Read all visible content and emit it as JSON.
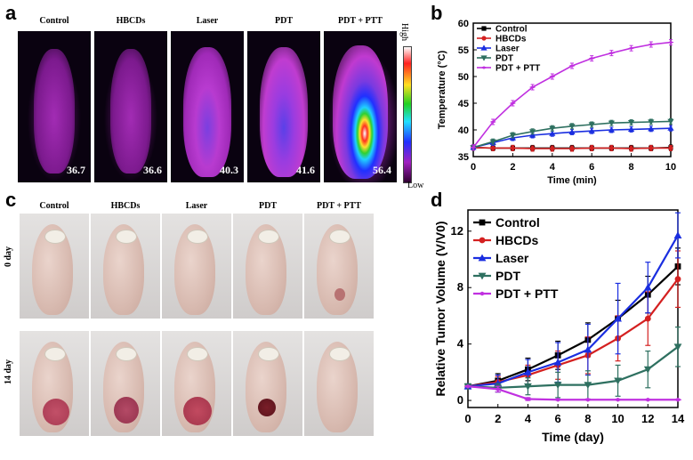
{
  "panels": {
    "a": "a",
    "b": "b",
    "c": "c",
    "d": "d"
  },
  "thermal": {
    "groups": [
      "Control",
      "HBCDs",
      "Laser",
      "PDT",
      "PDT + PTT"
    ],
    "temps": [
      "36.7",
      "36.6",
      "40.3",
      "41.6",
      "56.4"
    ],
    "scale_high": "High",
    "scale_low": "Low"
  },
  "photos": {
    "groups": [
      "Control",
      "HBCDs",
      "Laser",
      "PDT",
      "PDT + PTT"
    ],
    "rows": [
      "0 day",
      "14 day"
    ]
  },
  "chart_data": [
    {
      "type": "line",
      "title": "",
      "xlabel": "Time (min)",
      "ylabel": "Temperature (°C)",
      "xlim": [
        0,
        10
      ],
      "ylim": [
        35,
        60
      ],
      "xticks": [
        0,
        2,
        4,
        6,
        8,
        10
      ],
      "yticks": [
        35,
        40,
        45,
        50,
        55,
        60
      ],
      "legend_position": "top-left",
      "x": [
        0,
        1,
        2,
        3,
        4,
        5,
        6,
        7,
        8,
        9,
        10
      ],
      "series": [
        {
          "name": "Control",
          "color": "#000000",
          "values": [
            36.7,
            36.6,
            36.6,
            36.6,
            36.6,
            36.6,
            36.6,
            36.6,
            36.6,
            36.6,
            36.7
          ]
        },
        {
          "name": "HBCDs",
          "color": "#d42020",
          "values": [
            36.7,
            36.6,
            36.6,
            36.5,
            36.5,
            36.5,
            36.6,
            36.6,
            36.5,
            36.6,
            36.6
          ]
        },
        {
          "name": "Laser",
          "color": "#1a2ee0",
          "values": [
            36.7,
            37.6,
            38.5,
            39.0,
            39.3,
            39.6,
            39.8,
            40.0,
            40.1,
            40.2,
            40.3
          ]
        },
        {
          "name": "PDT",
          "color": "#2e7060",
          "values": [
            36.7,
            37.8,
            39.0,
            39.7,
            40.3,
            40.7,
            41.0,
            41.3,
            41.4,
            41.5,
            41.6
          ]
        },
        {
          "name": "PDT + PTT",
          "color": "#c030e0",
          "values": [
            36.7,
            41.5,
            45.0,
            48.0,
            50.0,
            52.0,
            53.4,
            54.4,
            55.3,
            56.0,
            56.4
          ]
        }
      ]
    },
    {
      "type": "line",
      "title": "",
      "xlabel": "Time (day)",
      "ylabel": "Relative Tumor Volume (V/V0)",
      "xlim": [
        0,
        14
      ],
      "ylim": [
        -0.5,
        13.5
      ],
      "xticks": [
        0,
        2,
        4,
        6,
        8,
        10,
        12,
        14
      ],
      "yticks": [
        0,
        4,
        8,
        12
      ],
      "legend_position": "top-left",
      "x": [
        0,
        2,
        4,
        6,
        8,
        10,
        12,
        14
      ],
      "series": [
        {
          "name": "Control",
          "color": "#000000",
          "values": [
            1.0,
            1.4,
            2.2,
            3.2,
            4.3,
            5.8,
            7.5,
            9.5
          ],
          "err": [
            0,
            0.5,
            0.8,
            1.0,
            1.2,
            1.3,
            1.3,
            1.3
          ]
        },
        {
          "name": "HBCDs",
          "color": "#d42020",
          "values": [
            1.0,
            1.3,
            1.8,
            2.5,
            3.2,
            4.4,
            5.8,
            8.6
          ],
          "err": [
            0,
            0.4,
            0.7,
            1.0,
            1.3,
            1.6,
            1.9,
            2.0
          ]
        },
        {
          "name": "Laser",
          "color": "#1a2ee0",
          "values": [
            1.0,
            1.2,
            2.0,
            2.7,
            3.6,
            5.8,
            8.0,
            11.7
          ],
          "err": [
            0,
            0.6,
            0.9,
            1.4,
            1.8,
            2.5,
            1.8,
            1.6
          ]
        },
        {
          "name": "PDT",
          "color": "#2e7060",
          "values": [
            1.0,
            0.9,
            1.0,
            1.1,
            1.1,
            1.4,
            2.2,
            3.8
          ],
          "err": [
            0,
            0.3,
            0.6,
            0.9,
            1.0,
            1.1,
            1.3,
            1.4
          ]
        },
        {
          "name": "PDT + PTT",
          "color": "#c030e0",
          "values": [
            1.0,
            0.8,
            0.1,
            0.05,
            0.05,
            0.05,
            0.05,
            0.05
          ],
          "err": [
            0,
            0.2,
            0.1,
            0,
            0,
            0,
            0,
            0
          ]
        }
      ]
    }
  ]
}
